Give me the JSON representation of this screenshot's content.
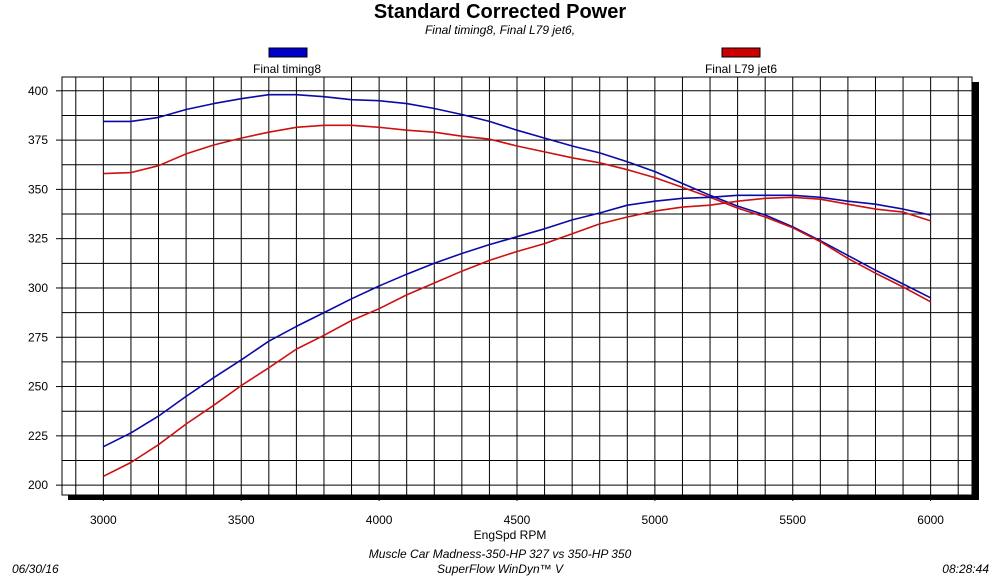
{
  "chart_data": {
    "type": "line",
    "title": "Standard Corrected Power",
    "subtitle": "Final timing8, Final L79 jet6,",
    "xlabel": "EngSpd  RPM",
    "xlim": [
      2850,
      6150
    ],
    "ylim": [
      195,
      407
    ],
    "x_ticks": [
      "3000",
      "3500",
      "4000",
      "4500",
      "5000",
      "5500",
      "6000"
    ],
    "y_ticks": [
      "200",
      "225",
      "250",
      "275",
      "300",
      "325",
      "350",
      "375",
      "400"
    ],
    "grid": true,
    "legend": [
      {
        "name": "Final timing8",
        "color": "#0000cc",
        "placement": "top-left"
      },
      {
        "name": "Final L79 jet6",
        "color": "#cc0000",
        "placement": "top-right"
      }
    ],
    "series": [
      {
        "name": "Final timing8",
        "role": "torque",
        "color": "#0a0aa8",
        "x": [
          3000,
          3100,
          3200,
          3300,
          3400,
          3500,
          3600,
          3700,
          3800,
          3900,
          4000,
          4100,
          4200,
          4300,
          4400,
          4500,
          4600,
          4700,
          4800,
          4900,
          5000,
          5100,
          5200,
          5300,
          5400,
          5500,
          5600,
          5700,
          5800,
          5900,
          6000
        ],
        "y": [
          384.5,
          384.5,
          386.5,
          390.5,
          393.5,
          396,
          398,
          398,
          397,
          395.5,
          395,
          393.5,
          391,
          388,
          384.5,
          380,
          376,
          372,
          368.5,
          364,
          359,
          353,
          347,
          341.5,
          337,
          331,
          324,
          316.5,
          309,
          302,
          295
        ]
      },
      {
        "name": "Final L79 jet6",
        "role": "torque",
        "color": "#cc1111",
        "x": [
          3000,
          3100,
          3200,
          3300,
          3400,
          3500,
          3600,
          3700,
          3800,
          3900,
          4000,
          4100,
          4200,
          4300,
          4400,
          4500,
          4600,
          4700,
          4800,
          4900,
          5000,
          5100,
          5200,
          5300,
          5400,
          5500,
          5600,
          5700,
          5800,
          5900,
          6000
        ],
        "y": [
          358,
          358.5,
          362,
          368,
          372.5,
          376,
          379,
          381.5,
          382.5,
          382.5,
          381.5,
          380,
          379,
          377,
          375.5,
          372,
          369,
          366,
          363.5,
          360,
          356,
          351,
          346,
          340.5,
          336,
          330.5,
          323.5,
          315,
          307.5,
          300.5,
          293
        ]
      },
      {
        "name": "Final timing8",
        "role": "power",
        "color": "#0a0aa8",
        "x": [
          3000,
          3100,
          3200,
          3300,
          3400,
          3500,
          3600,
          3700,
          3800,
          3900,
          4000,
          4100,
          4200,
          4300,
          4400,
          4500,
          4600,
          4700,
          4800,
          4900,
          5000,
          5100,
          5200,
          5300,
          5400,
          5500,
          5600,
          5700,
          5800,
          5900,
          6000
        ],
        "y": [
          219.5,
          226.5,
          235,
          245,
          254.5,
          263.5,
          273,
          280.5,
          287.5,
          294.5,
          301,
          307,
          312.5,
          317.5,
          322,
          326,
          330,
          334.5,
          338,
          342,
          344,
          345.5,
          346,
          347,
          347,
          347,
          346,
          344,
          342.5,
          340,
          337
        ]
      },
      {
        "name": "Final L79 jet6",
        "role": "power",
        "color": "#cc1111",
        "x": [
          3000,
          3100,
          3200,
          3300,
          3400,
          3500,
          3600,
          3700,
          3800,
          3900,
          4000,
          4100,
          4200,
          4300,
          4400,
          4500,
          4600,
          4700,
          4800,
          4900,
          5000,
          5100,
          5200,
          5300,
          5400,
          5500,
          5600,
          5700,
          5800,
          5900,
          6000
        ],
        "y": [
          204.5,
          211.5,
          220.5,
          231,
          240.5,
          250.5,
          259.5,
          269,
          276,
          283.5,
          289.5,
          296.5,
          302.5,
          308.5,
          314,
          318.5,
          322.5,
          327.5,
          332.5,
          336,
          339,
          341,
          342,
          344,
          345.5,
          346,
          345,
          342.5,
          340,
          338.5,
          334
        ]
      }
    ]
  },
  "footer": {
    "date": "06/30/16",
    "line1": "Muscle Car Madness-350-HP 327 vs 350-HP 350",
    "line2": "SuperFlow WinDyn™ V",
    "time": "08:28:44"
  }
}
